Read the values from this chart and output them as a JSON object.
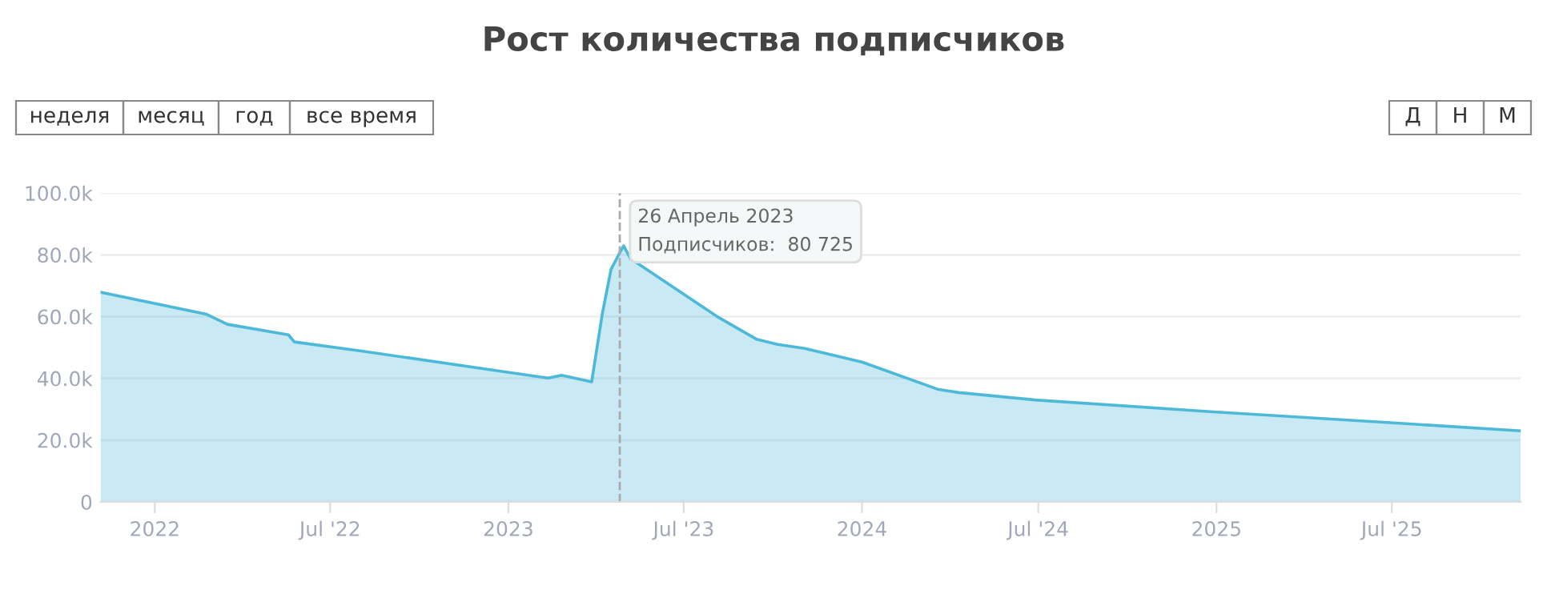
{
  "chart_data": {
    "type": "area",
    "title": "Рост количества подписчиков",
    "x": [
      "2021-11-06",
      "2022-02-23",
      "2022-03-17",
      "2022-05-19",
      "2022-05-25",
      "2022-08-04",
      "2022-12-24",
      "2023-02-11",
      "2023-02-25",
      "2023-03-28",
      "2023-04-08",
      "2023-04-17",
      "2023-04-26",
      "2023-04-30",
      "2023-05-07",
      "2023-08-04",
      "2023-09-14",
      "2023-10-06",
      "2023-11-03",
      "2024-01-01",
      "2024-03-19",
      "2024-04-10",
      "2024-06-28",
      "2025-01-01",
      "2025-07-03",
      "2025-11-11"
    ],
    "series": [
      {
        "color": "#4cb9d9",
        "values": [
          67900,
          60800,
          57500,
          54100,
          51800,
          48800,
          42300,
          40100,
          41000,
          38900,
          61000,
          75300,
          80725,
          82900,
          78800,
          60100,
          52700,
          51000,
          49700,
          45300,
          36500,
          35400,
          33000,
          29100,
          25600,
          23000
        ]
      }
    ],
    "xlim": [
      "2021-11-06",
      "2025-11-11"
    ],
    "xticks": [
      {
        "value": "2022-01-01",
        "label": "2022"
      },
      {
        "value": "2022-07-01",
        "label": "Jul '22"
      },
      {
        "value": "2023-01-01",
        "label": "2023"
      },
      {
        "value": "2023-07-01",
        "label": "Jul '23"
      },
      {
        "value": "2024-01-01",
        "label": "2024"
      },
      {
        "value": "2024-07-01",
        "label": "Jul '24"
      },
      {
        "value": "2025-01-01",
        "label": "2025"
      },
      {
        "value": "2025-07-01",
        "label": "Jul '25"
      }
    ],
    "ylim": [
      0,
      100000
    ],
    "yticks": [
      {
        "value": 0,
        "label": "0"
      },
      {
        "value": 20000,
        "label": "20.0k"
      },
      {
        "value": 40000,
        "label": "40.0k"
      },
      {
        "value": 60000,
        "label": "60.0k"
      },
      {
        "value": 80000,
        "label": "80.0k"
      },
      {
        "value": 100000,
        "label": "100.0k"
      }
    ],
    "grid": "y",
    "legend": false,
    "marker": "none",
    "line_style": "solid",
    "ref_lines": [
      {
        "axis": "x",
        "value": "2023-04-26",
        "color": "#aaaaaa",
        "line_style": "dashed"
      }
    ],
    "annotations": [
      {
        "text": "26 Апрель 2023\nПодписчиков:  80 725",
        "x": "2023-04-26",
        "y": 80725
      },
      "неделя",
      "месяц",
      "год",
      "все время",
      "Д",
      "Н",
      "М"
    ]
  }
}
